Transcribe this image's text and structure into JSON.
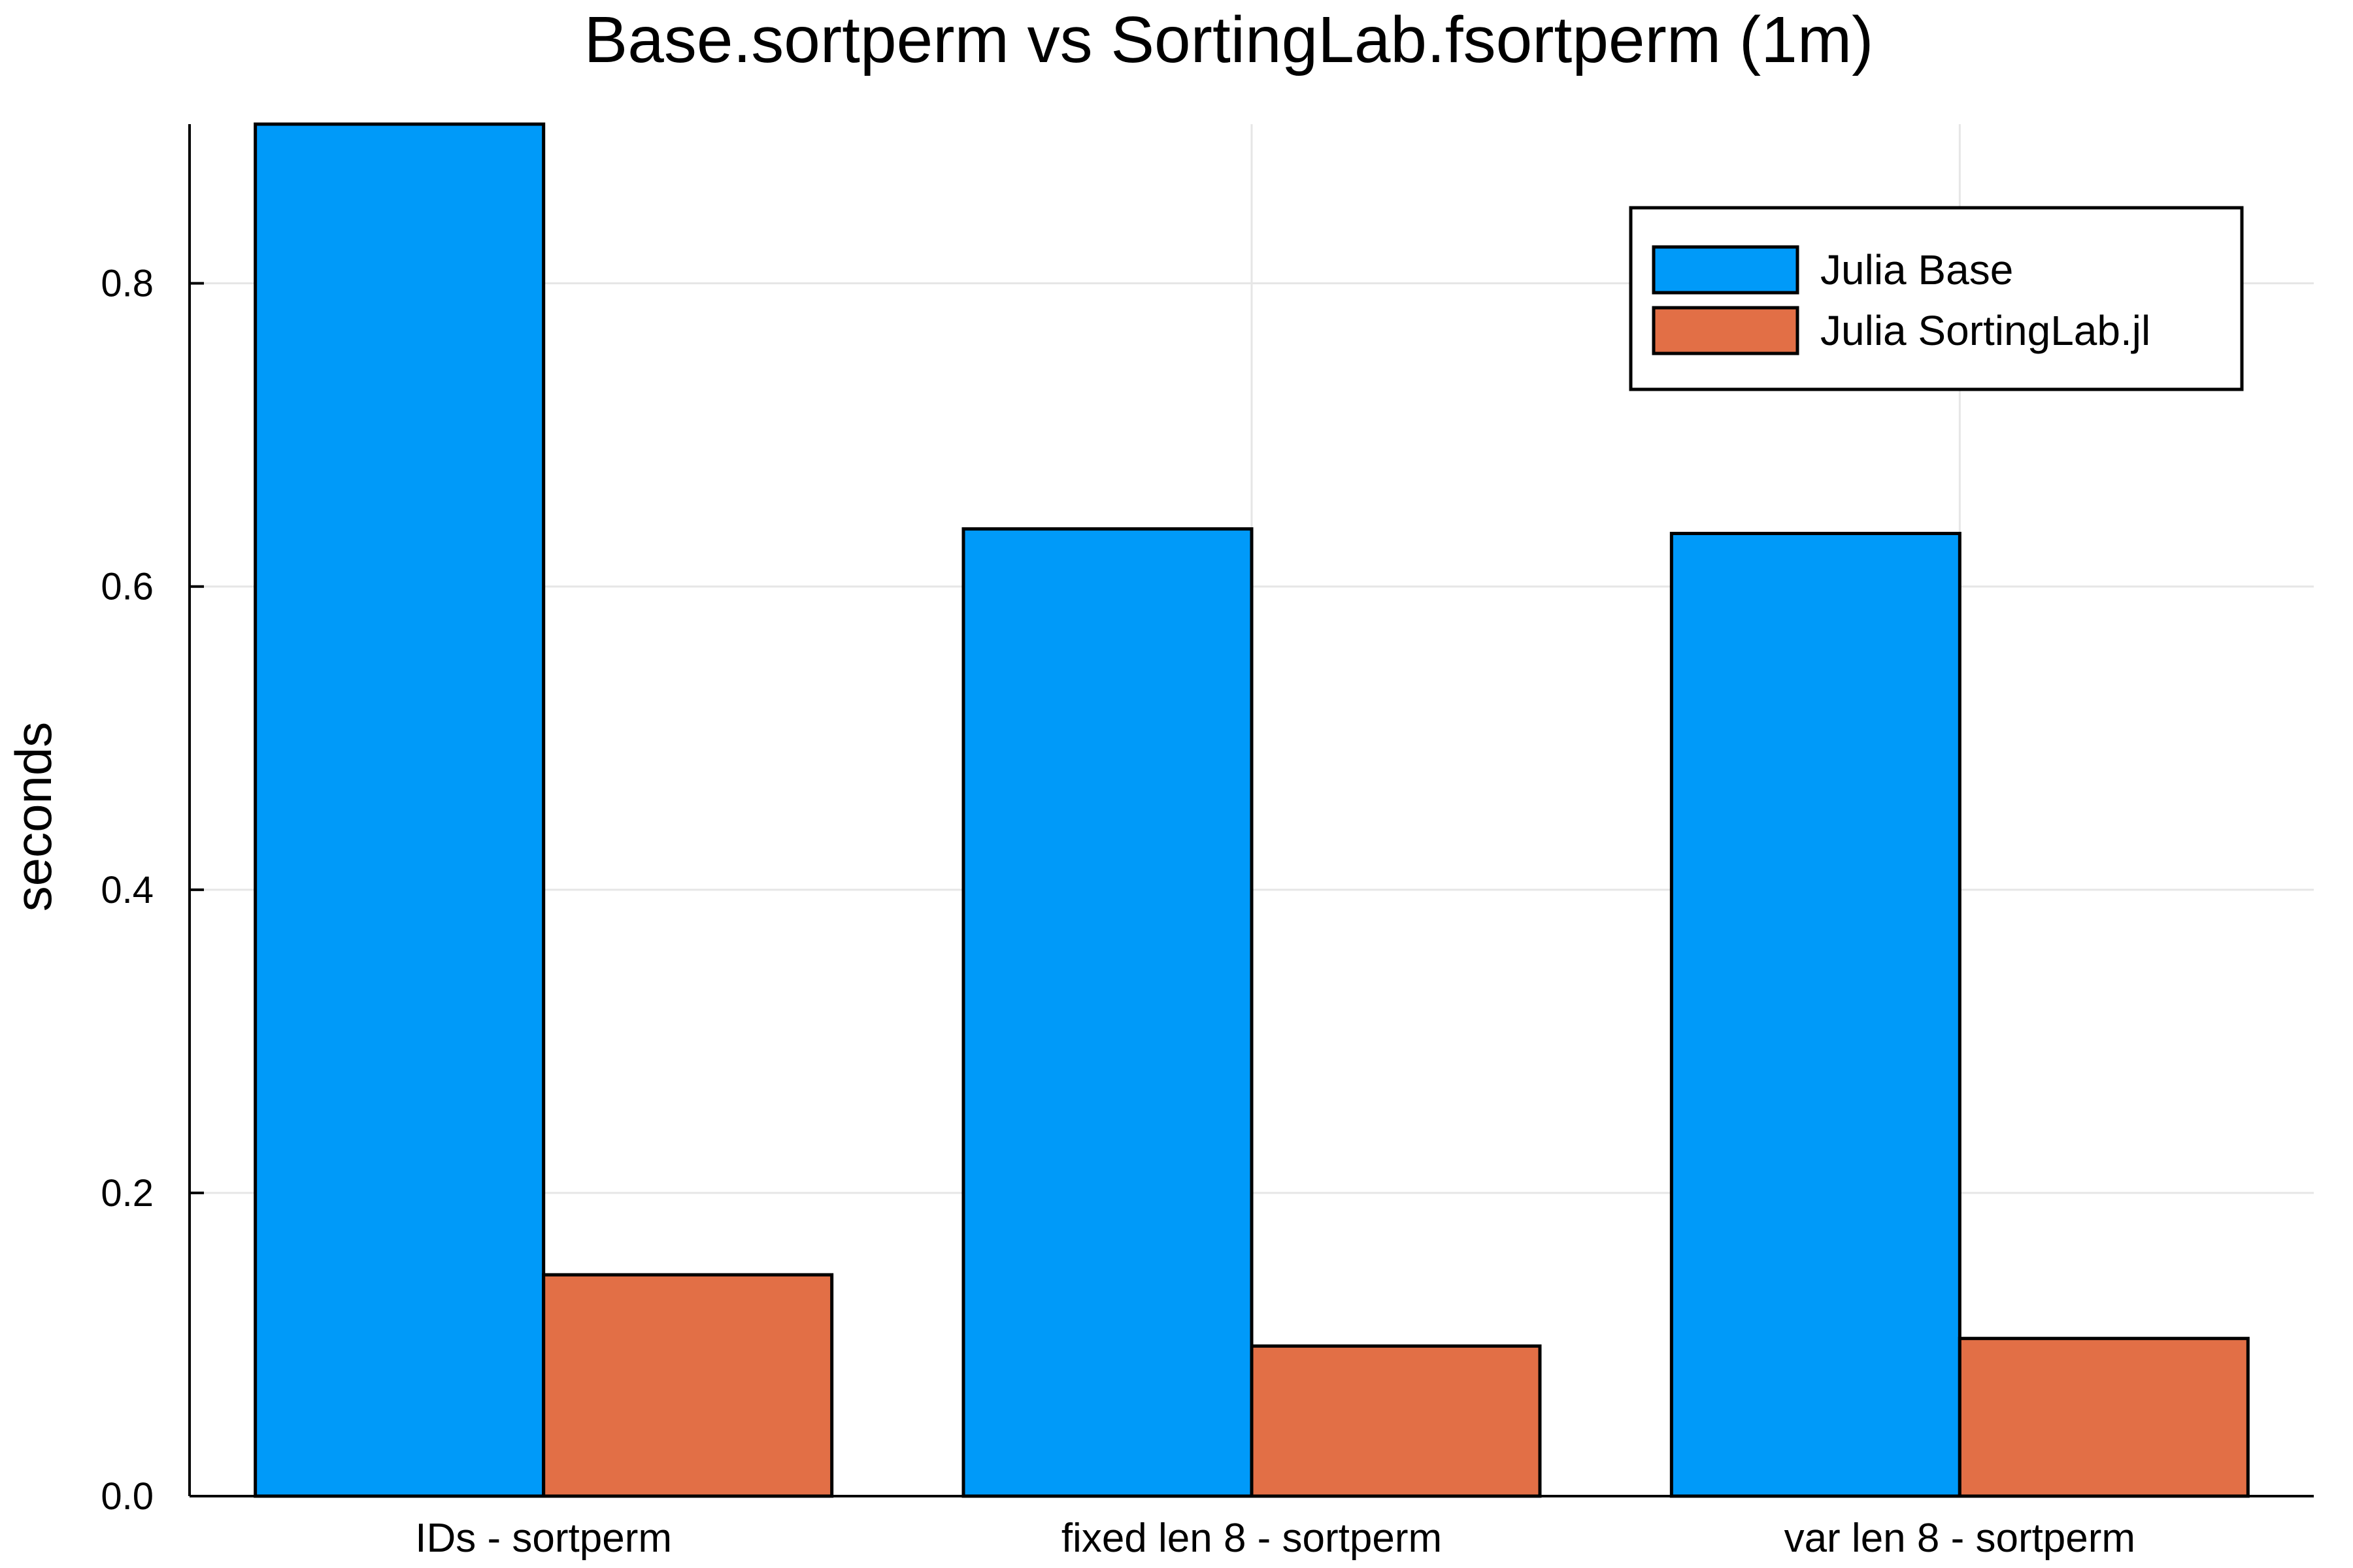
{
  "chart_data": {
    "type": "bar",
    "title": "Base.sortperm vs SortingLab.fsortperm (1m)",
    "xlabel": "",
    "ylabel": "seconds",
    "categories": [
      "IDs - sortperm",
      "fixed len 8 - sortperm",
      "var len 8 - sortperm"
    ],
    "series": [
      {
        "name": "Julia Base",
        "color": "#009AF9",
        "values": [
          0.905,
          0.638,
          0.635
        ]
      },
      {
        "name": "Julia SortingLab.jl",
        "color": "#E26F46",
        "values": [
          0.146,
          0.099,
          0.104
        ]
      }
    ],
    "ylim": [
      0,
      0.905
    ],
    "yticks": [
      0.0,
      0.2,
      0.4,
      0.6,
      0.8
    ],
    "ytick_labels": [
      "0.0",
      "0.2",
      "0.4",
      "0.6",
      "0.8"
    ],
    "grid": true,
    "legend_position": "top-right"
  }
}
